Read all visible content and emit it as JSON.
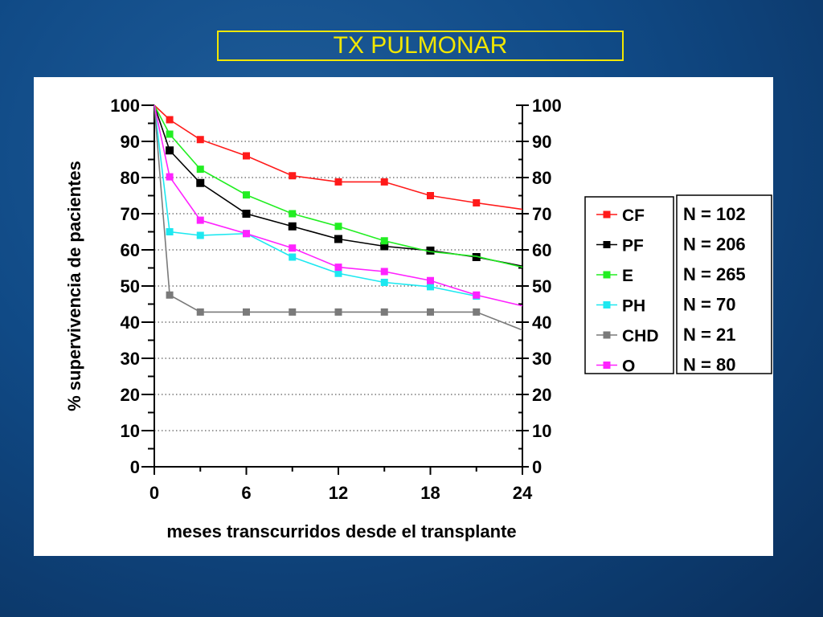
{
  "slide": {
    "title": "TX PULMONAR"
  },
  "chart_data": {
    "type": "line",
    "xlabel": "meses transcurridos desde el transplante",
    "ylabel": "% supervivencia de pacientes",
    "xlim": [
      0,
      24
    ],
    "ylim": [
      0,
      100
    ],
    "x_ticks": [
      0,
      6,
      12,
      18,
      24
    ],
    "y_ticks": [
      0,
      10,
      20,
      30,
      40,
      50,
      60,
      70,
      80,
      90,
      100
    ],
    "grid": "horizontal dotted",
    "legend_position": "right",
    "series": [
      {
        "name": "CF",
        "n": "N = 102",
        "color": "#ff1a1a",
        "x": [
          0,
          1,
          3,
          6,
          9,
          12,
          15,
          18,
          21,
          24
        ],
        "y": [
          100,
          96,
          90.5,
          86,
          80.5,
          78.8,
          78.8,
          75,
          73,
          71.2
        ],
        "markers": [
          1,
          2,
          3,
          4,
          5,
          6,
          7,
          8
        ]
      },
      {
        "name": "PF",
        "n": "N = 206",
        "color": "#000000",
        "x": [
          0,
          1,
          3,
          6,
          9,
          12,
          15,
          18,
          21,
          24
        ],
        "y": [
          100,
          87.5,
          78.5,
          70,
          66.5,
          63,
          61,
          59.8,
          58,
          55.5
        ],
        "markers": [
          1,
          2,
          3,
          4,
          5,
          6,
          7,
          8
        ]
      },
      {
        "name": "E",
        "n": "N = 265",
        "color": "#22ee22",
        "x": [
          0,
          1,
          3,
          6,
          9,
          12,
          15,
          18,
          21,
          24
        ],
        "y": [
          100,
          92,
          82.3,
          75.2,
          70,
          66.5,
          62.5,
          59.5,
          58.2,
          55.2
        ],
        "markers": [
          1,
          2,
          3,
          4,
          5,
          6
        ]
      },
      {
        "name": "PH",
        "n": "N = 70",
        "color": "#1de8f0",
        "x": [
          0,
          1,
          3,
          6,
          9,
          12,
          15,
          18,
          21
        ],
        "y": [
          100,
          65,
          64,
          64.5,
          58,
          53.5,
          51,
          49.8,
          47.2
        ],
        "markers": [
          1,
          2,
          3,
          4,
          5,
          6,
          7,
          8
        ]
      },
      {
        "name": "CHD",
        "n": "N = 21",
        "color": "#7a7a7a",
        "x": [
          0,
          1,
          3,
          6,
          9,
          12,
          15,
          18,
          21,
          24
        ],
        "y": [
          100,
          47.5,
          42.8,
          42.8,
          42.8,
          42.8,
          42.8,
          42.8,
          42.8,
          37.8
        ],
        "markers": [
          1,
          2,
          3,
          4,
          5,
          6,
          7,
          8
        ]
      },
      {
        "name": "O",
        "n": "N = 80",
        "color": "#ff22ff",
        "x": [
          0,
          1,
          3,
          6,
          9,
          12,
          15,
          18,
          21,
          24
        ],
        "y": [
          100,
          80.2,
          68.2,
          64.5,
          60.5,
          55.2,
          54,
          51.5,
          47.5,
          44.5
        ],
        "markers": [
          1,
          2,
          3,
          4,
          5,
          6,
          7,
          8
        ]
      }
    ]
  }
}
